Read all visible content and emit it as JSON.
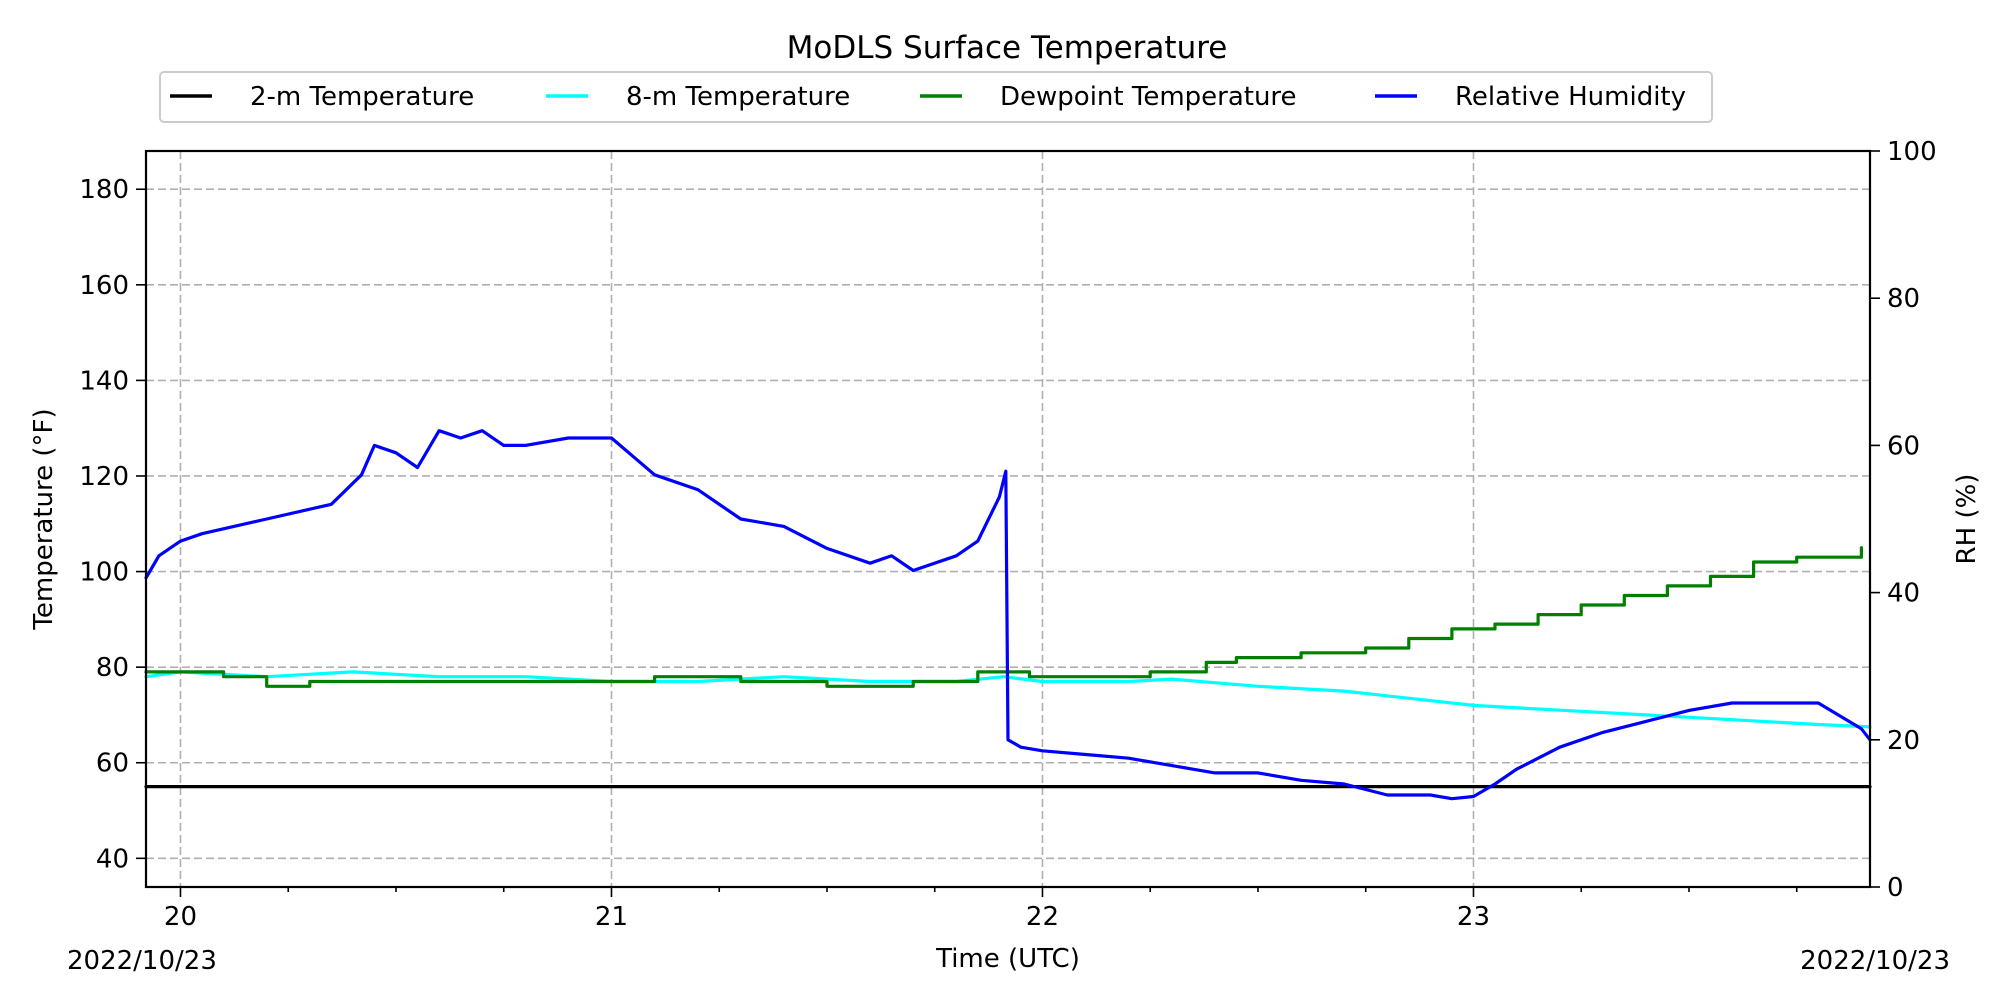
{
  "chart_data": {
    "type": "line",
    "title": "MoDLS Surface Temperature",
    "xlabel": "Time (UTC)",
    "ylabel": "Temperature ($^\\circ$F)",
    "ylabel_display": "Temperature (°F)",
    "y2label": "RH (%)",
    "x_unit": "hour (UTC)",
    "xlim": [
      19.92,
      23.92
    ],
    "ylim": [
      34,
      188
    ],
    "y2lim": [
      0,
      100
    ],
    "x_ticks": [
      20,
      21,
      22,
      23
    ],
    "x_tick_labels": [
      "20",
      "21",
      "22",
      "23"
    ],
    "y_ticks": [
      40,
      60,
      80,
      100,
      120,
      140,
      160,
      180
    ],
    "y2_ticks": [
      0,
      20,
      40,
      60,
      80,
      100
    ],
    "date_left": "2022/10/23",
    "date_right": "2022/10/23",
    "grid": true,
    "legend_position": "top-center",
    "series": [
      {
        "name": "2-m Temperature",
        "color": "#000000",
        "axis": "left",
        "step": false,
        "x": [
          19.92,
          23.92
        ],
        "y": [
          55,
          55
        ]
      },
      {
        "name": "8-m Temperature",
        "color": "#00ffff",
        "axis": "left",
        "step": false,
        "x": [
          19.92,
          20.0,
          20.2,
          20.4,
          20.6,
          20.8,
          21.0,
          21.2,
          21.4,
          21.6,
          21.8,
          21.91,
          22.0,
          22.2,
          22.3,
          22.5,
          22.7,
          23.0,
          23.2,
          23.4,
          23.6,
          23.8,
          23.92
        ],
        "y": [
          78,
          79,
          78,
          79,
          78,
          78,
          77,
          77,
          78,
          77,
          77,
          78,
          77,
          77,
          77.5,
          76,
          75,
          72,
          71,
          70,
          69,
          68,
          67.5
        ]
      },
      {
        "name": "Dewpoint Temperature",
        "color": "#008000",
        "axis": "left",
        "step": true,
        "x": [
          19.92,
          20.1,
          20.2,
          20.3,
          20.5,
          20.7,
          20.9,
          21.1,
          21.3,
          21.4,
          21.5,
          21.7,
          21.85,
          21.97,
          22.1,
          22.25,
          22.38,
          22.45,
          22.6,
          22.75,
          22.85,
          22.95,
          23.05,
          23.15,
          23.25,
          23.35,
          23.45,
          23.55,
          23.65,
          23.75,
          23.9
        ],
        "y": [
          79,
          78,
          76,
          77,
          77,
          77,
          77,
          78,
          77,
          77,
          76,
          77,
          79,
          78,
          78,
          79,
          81,
          82,
          83,
          84,
          86,
          88,
          89,
          91,
          93,
          95,
          97,
          99,
          102,
          103,
          105
        ]
      },
      {
        "name": "Relative Humidity",
        "color": "#0000ff",
        "axis": "right",
        "step": false,
        "x": [
          19.92,
          19.95,
          20.0,
          20.05,
          20.2,
          20.35,
          20.42,
          20.45,
          20.5,
          20.55,
          20.6,
          20.65,
          20.7,
          20.75,
          20.8,
          20.9,
          21.0,
          21.1,
          21.2,
          21.3,
          21.4,
          21.5,
          21.6,
          21.65,
          21.7,
          21.8,
          21.85,
          21.9,
          21.915,
          21.92,
          21.95,
          22.0,
          22.1,
          22.2,
          22.3,
          22.4,
          22.5,
          22.6,
          22.7,
          22.8,
          22.9,
          22.95,
          23.0,
          23.05,
          23.1,
          23.2,
          23.3,
          23.4,
          23.5,
          23.6,
          23.7,
          23.8,
          23.9,
          23.92
        ],
        "y": [
          42,
          45,
          47,
          48,
          50,
          52,
          56,
          60,
          59,
          57,
          62,
          61,
          62,
          60,
          60,
          61,
          61,
          56,
          54,
          50,
          49,
          46,
          44,
          45,
          43,
          45,
          47,
          53,
          56.5,
          20,
          19,
          18.5,
          18,
          17.5,
          16.5,
          15.5,
          15.5,
          14.5,
          14,
          12.5,
          12.5,
          12,
          12.3,
          14,
          16,
          19,
          21,
          22.5,
          24,
          25,
          25,
          25,
          21.5,
          20
        ]
      }
    ]
  }
}
